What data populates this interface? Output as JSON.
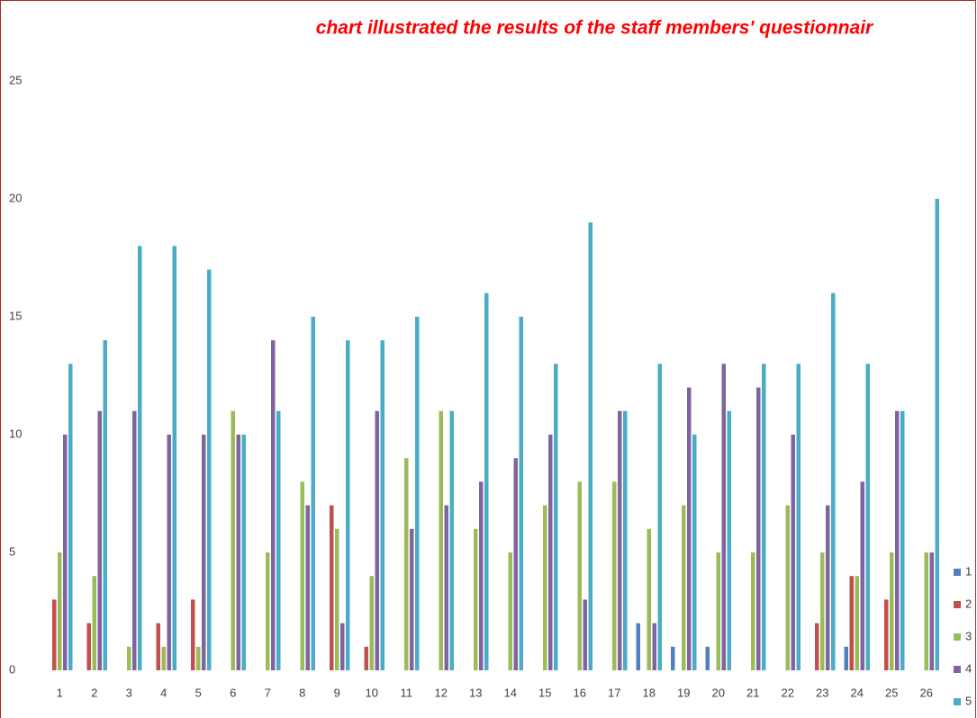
{
  "chart_data": {
    "type": "bar",
    "title": "chart illustrated the results of the staff members' questionnair",
    "categories": [
      "1",
      "2",
      "3",
      "4",
      "5",
      "6",
      "7",
      "8",
      "9",
      "10",
      "11",
      "12",
      "13",
      "14",
      "15",
      "16",
      "17",
      "18",
      "19",
      "20",
      "21",
      "22",
      "23",
      "24",
      "25",
      "26"
    ],
    "series": [
      {
        "name": "1",
        "color": "#4f81bd",
        "values": [
          0,
          0,
          0,
          0,
          0,
          0,
          0,
          0,
          0,
          0,
          0,
          0,
          0,
          0,
          0,
          0,
          0,
          2,
          1,
          1,
          0,
          0,
          0,
          1,
          0,
          0
        ]
      },
      {
        "name": "2",
        "color": "#c0504d",
        "values": [
          3,
          2,
          0,
          2,
          3,
          0,
          0,
          0,
          7,
          1,
          0,
          0,
          0,
          0,
          0,
          0,
          0,
          0,
          0,
          0,
          0,
          0,
          2,
          4,
          3,
          0
        ]
      },
      {
        "name": "3",
        "color": "#9bbb59",
        "values": [
          5,
          4,
          1,
          1,
          1,
          11,
          5,
          8,
          6,
          4,
          9,
          11,
          6,
          5,
          7,
          8,
          8,
          6,
          7,
          5,
          5,
          7,
          5,
          4,
          5,
          5
        ]
      },
      {
        "name": "4",
        "color": "#8064a2",
        "values": [
          10,
          11,
          11,
          10,
          10,
          10,
          14,
          7,
          2,
          11,
          6,
          7,
          8,
          9,
          10,
          3,
          11,
          2,
          12,
          13,
          12,
          10,
          7,
          8,
          11,
          5
        ]
      },
      {
        "name": "5",
        "color": "#4bacc6",
        "values": [
          13,
          14,
          18,
          18,
          17,
          10,
          11,
          15,
          14,
          14,
          15,
          11,
          16,
          15,
          13,
          19,
          11,
          13,
          10,
          11,
          13,
          13,
          16,
          13,
          11,
          20
        ]
      }
    ],
    "ylim": [
      0,
      25
    ],
    "yticks": [
      0,
      5,
      10,
      15,
      20,
      25
    ],
    "grid": false,
    "legend": "right"
  }
}
